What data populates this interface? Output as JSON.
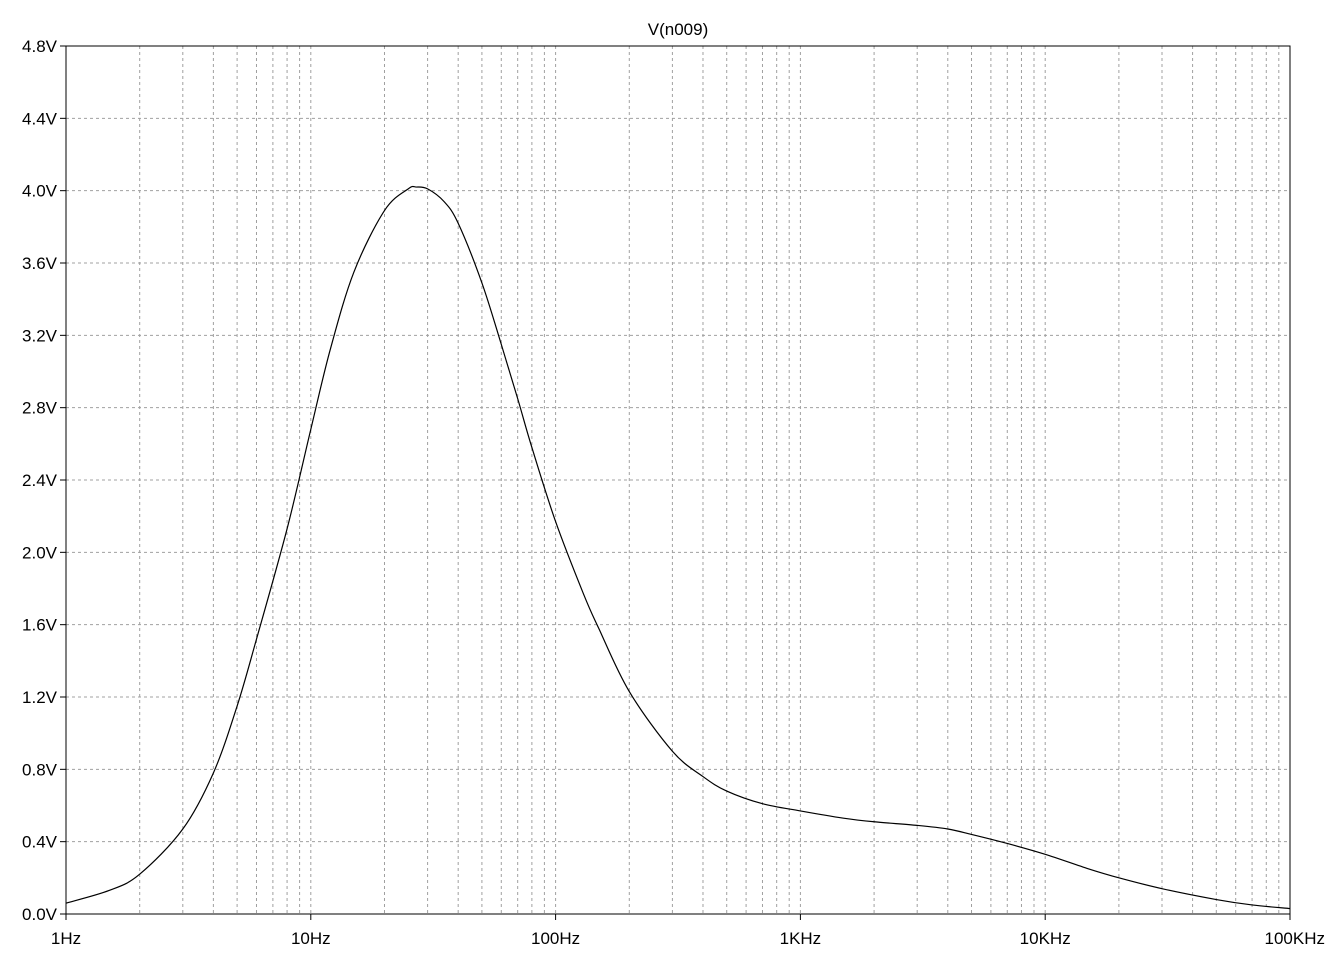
{
  "chart_data": {
    "type": "line",
    "title": "V(n009)",
    "xlabel": "",
    "ylabel": "",
    "x_scale": "log",
    "xlim": [
      1,
      100000
    ],
    "ylim": [
      0,
      4.8
    ],
    "grid": true,
    "x_ticks": [
      {
        "value": 1,
        "label": "1Hz"
      },
      {
        "value": 10,
        "label": "10Hz"
      },
      {
        "value": 100,
        "label": "100Hz"
      },
      {
        "value": 1000,
        "label": "1KHz"
      },
      {
        "value": 10000,
        "label": "10KHz"
      },
      {
        "value": 100000,
        "label": "100KHz"
      }
    ],
    "y_ticks": [
      {
        "value": 0.0,
        "label": "0.0V"
      },
      {
        "value": 0.4,
        "label": "0.4V"
      },
      {
        "value": 0.8,
        "label": "0.8V"
      },
      {
        "value": 1.2,
        "label": "1.2V"
      },
      {
        "value": 1.6,
        "label": "1.6V"
      },
      {
        "value": 2.0,
        "label": "2.0V"
      },
      {
        "value": 2.4,
        "label": "2.4V"
      },
      {
        "value": 2.8,
        "label": "2.8V"
      },
      {
        "value": 3.2,
        "label": "3.2V"
      },
      {
        "value": 3.6,
        "label": "3.6V"
      },
      {
        "value": 4.0,
        "label": "4.0V"
      },
      {
        "value": 4.4,
        "label": "4.4V"
      },
      {
        "value": 4.8,
        "label": "4.8V"
      }
    ],
    "series": [
      {
        "name": "V(n009)",
        "color": "#000000",
        "x": [
          1,
          1.5,
          2,
          3,
          4,
          5,
          6,
          8,
          10,
          12,
          15,
          20,
          25,
          27,
          30,
          35,
          40,
          50,
          60,
          70,
          80,
          100,
          130,
          150,
          200,
          300,
          400,
          500,
          700,
          1000,
          1500,
          2000,
          3000,
          4000,
          5000,
          7000,
          10000,
          15000,
          20000,
          30000,
          50000,
          70000,
          100000
        ],
        "y": [
          0.06,
          0.13,
          0.22,
          0.47,
          0.78,
          1.15,
          1.52,
          2.13,
          2.68,
          3.12,
          3.55,
          3.89,
          4.01,
          4.02,
          4.01,
          3.94,
          3.82,
          3.49,
          3.15,
          2.85,
          2.58,
          2.17,
          1.77,
          1.58,
          1.23,
          0.9,
          0.76,
          0.68,
          0.61,
          0.57,
          0.53,
          0.51,
          0.49,
          0.47,
          0.44,
          0.39,
          0.33,
          0.25,
          0.2,
          0.14,
          0.08,
          0.05,
          0.03
        ]
      }
    ]
  }
}
